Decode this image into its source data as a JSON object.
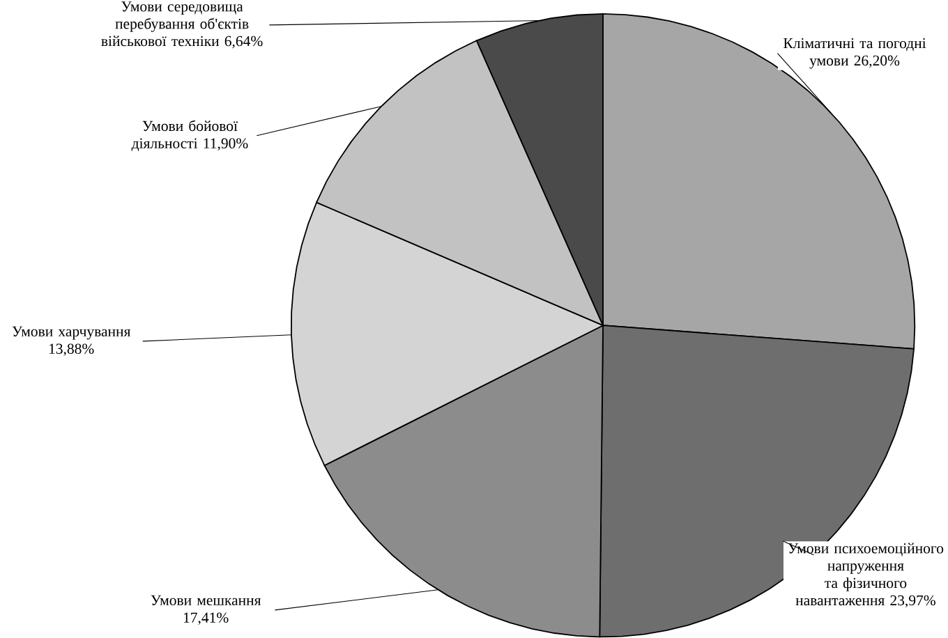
{
  "chart_data": {
    "type": "pie",
    "categories": [
      "Кліматичні та погодні умови",
      "Умови психоемоційного напруження та фізичного навантаження",
      "Умови мешкання",
      "Умови харчування",
      "Умови бойової діяльності",
      "Умови середовища перебування об'єктів військової техніки"
    ],
    "values": [
      26.2,
      23.97,
      17.41,
      13.88,
      11.9,
      6.64
    ],
    "value_labels": [
      "26,20%",
      "23,97%",
      "17,41%",
      "13,88%",
      "11,90%",
      "6,64%"
    ],
    "colors": [
      "#a6a6a6",
      "#6e6e6e",
      "#8c8c8c",
      "#d4d4d4",
      "#c2c2c2",
      "#4a4a4a"
    ]
  }
}
